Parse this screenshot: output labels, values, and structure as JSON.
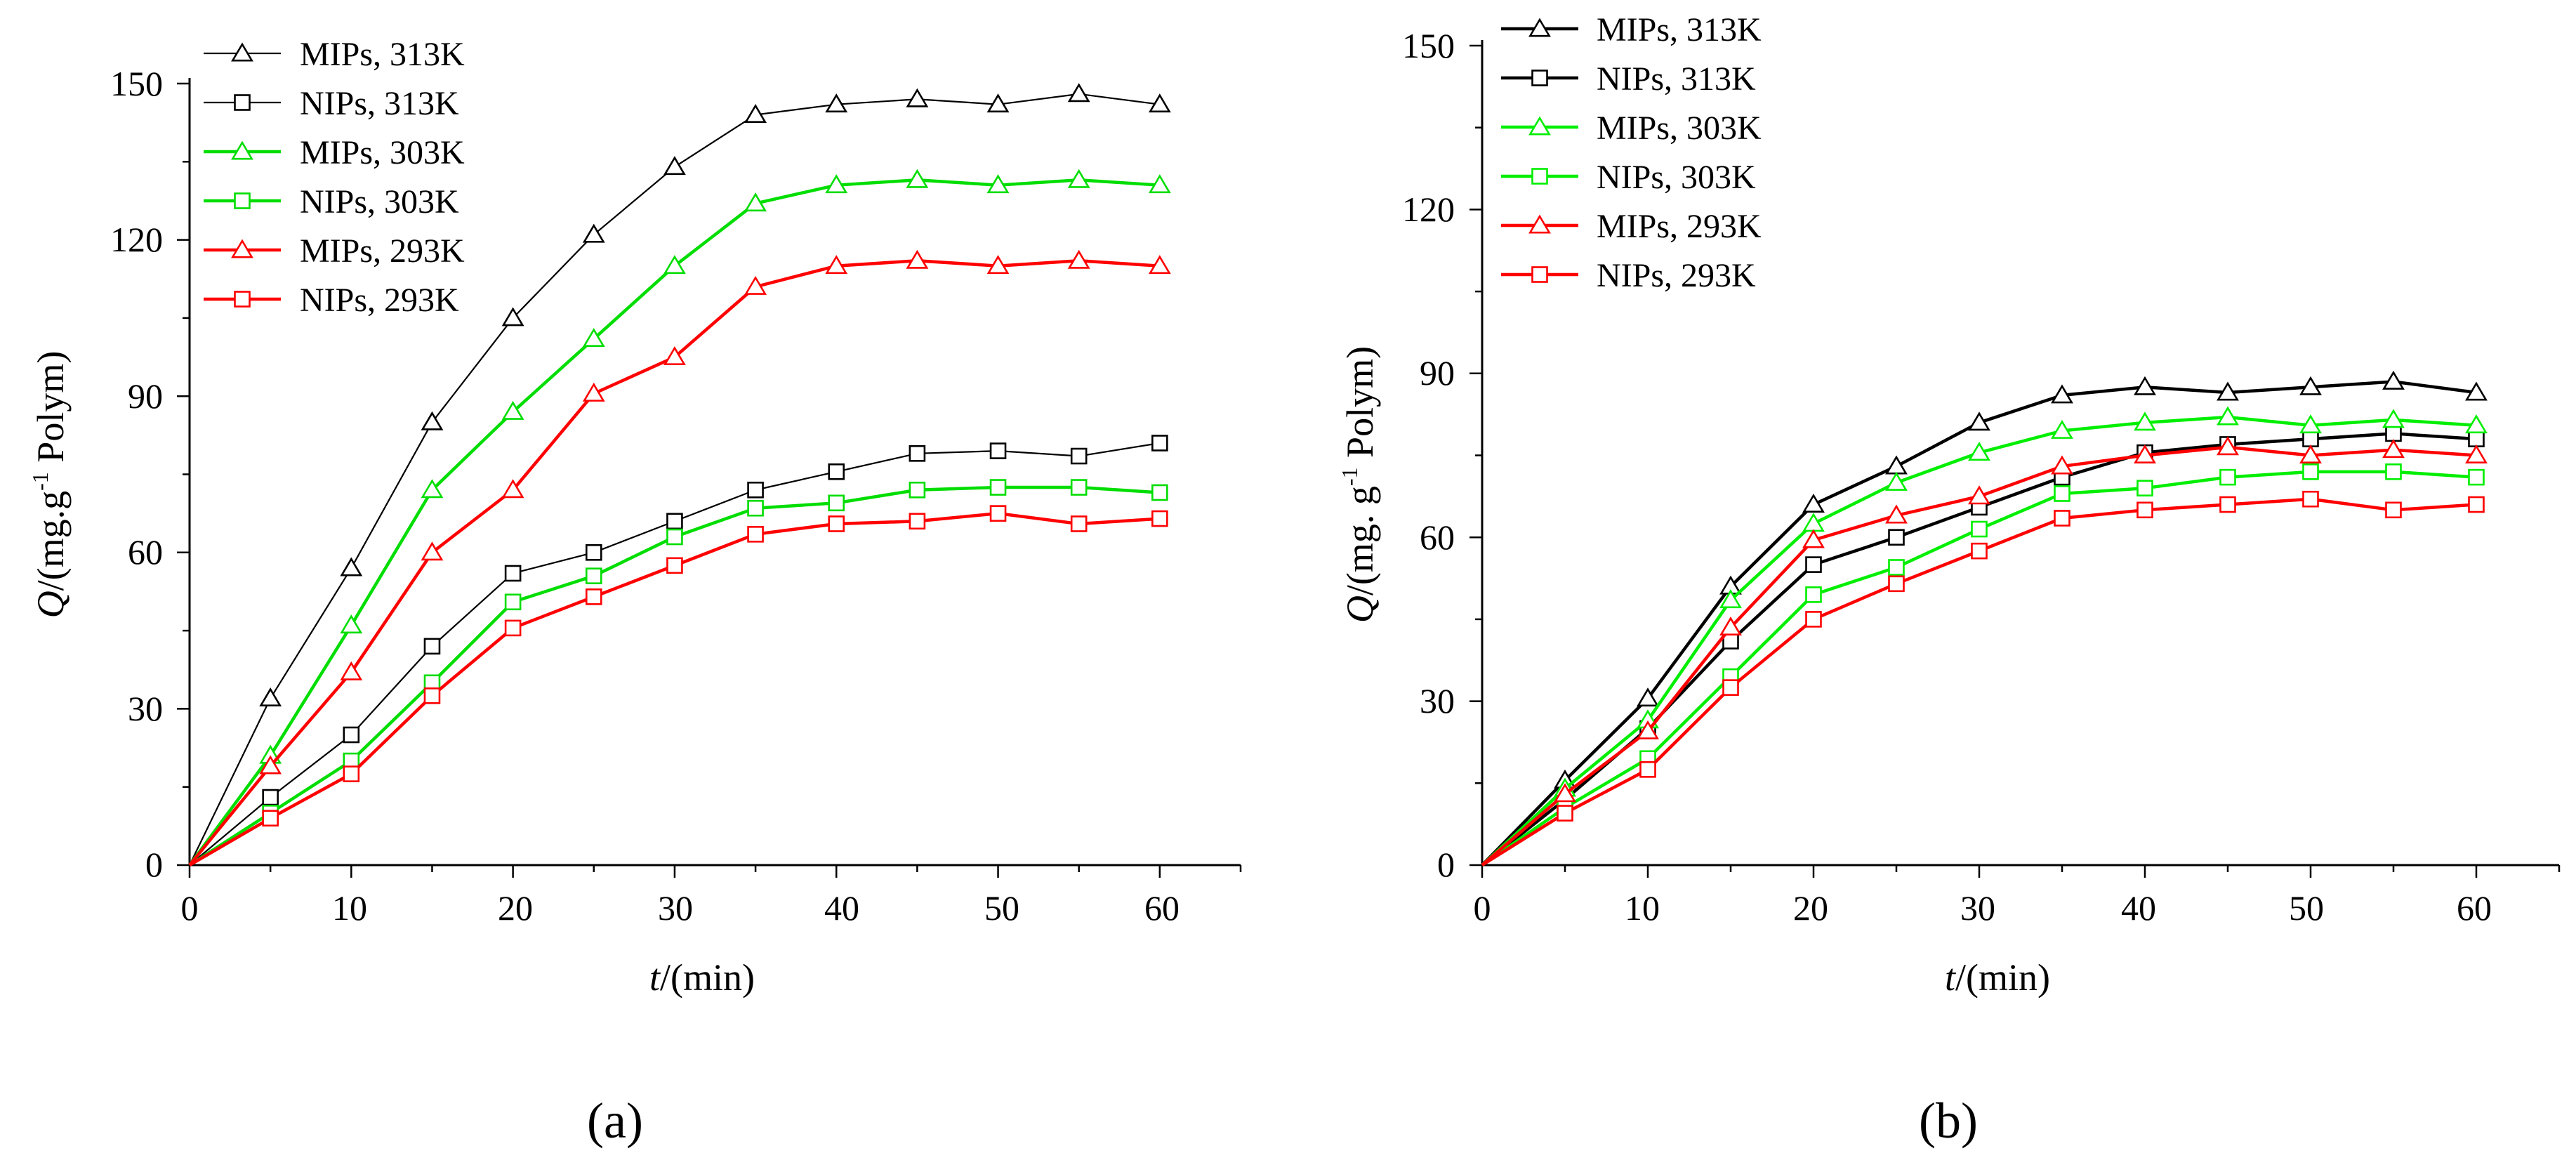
{
  "figure": {
    "panel_labels": [
      "(a)",
      "(b)"
    ]
  },
  "chart_data": [
    {
      "type": "line",
      "panel": "(a)",
      "title": "",
      "xlabel": {
        "italic": "t",
        "rest": "/(min)"
      },
      "ylabel": {
        "italic": "Q",
        "pre": "/(mg.g",
        "sup": "-1",
        "post": " Polym)"
      },
      "xlim": [
        0,
        65
      ],
      "ylim": [
        0,
        150
      ],
      "xticks": [
        0,
        10,
        20,
        30,
        40,
        50,
        60
      ],
      "yticks": [
        0,
        30,
        60,
        90,
        120,
        150
      ],
      "x": [
        0,
        5,
        10,
        15,
        20,
        25,
        30,
        35,
        40,
        45,
        50,
        55,
        60
      ],
      "legend_position": "top-left",
      "series": [
        {
          "name": "MIPs, 313K",
          "color": "#000000",
          "marker": "triangle",
          "line_weight": "thin",
          "values": [
            0,
            32,
            57,
            85,
            105,
            121,
            134,
            144,
            146,
            147,
            146,
            148,
            146
          ]
        },
        {
          "name": "NIPs, 313K",
          "color": "#000000",
          "marker": "square",
          "line_weight": "thin",
          "values": [
            0,
            13,
            25,
            42,
            56,
            60,
            66,
            72,
            75.5,
            79,
            79.5,
            78.5,
            81
          ]
        },
        {
          "name": "MIPs, 303K",
          "color": "#00dd00",
          "marker": "triangle",
          "line_weight": "thick",
          "values": [
            0,
            21,
            46,
            72,
            87,
            101,
            115,
            127,
            130.5,
            131.5,
            130.5,
            131.5,
            130.5
          ]
        },
        {
          "name": "NIPs, 303K",
          "color": "#00dd00",
          "marker": "square",
          "line_weight": "thick",
          "values": [
            0,
            10,
            20,
            35,
            50.5,
            55.5,
            63,
            68.5,
            69.5,
            72,
            72.5,
            72.5,
            71.5
          ]
        },
        {
          "name": "MIPs, 293K",
          "color": "#ff0000",
          "marker": "triangle",
          "line_weight": "thick",
          "values": [
            0,
            19,
            37,
            60,
            72,
            90.5,
            97.5,
            111,
            115,
            116,
            115,
            116,
            115
          ]
        },
        {
          "name": "NIPs, 293K",
          "color": "#ff0000",
          "marker": "square",
          "line_weight": "thick",
          "values": [
            0,
            9,
            17.5,
            32.5,
            45.5,
            51.5,
            57.5,
            63.5,
            65.5,
            66,
            67.5,
            65.5,
            66.5
          ]
        }
      ]
    },
    {
      "type": "line",
      "panel": "(b)",
      "title": "",
      "xlabel": {
        "italic": "t",
        "rest": "/(min)"
      },
      "ylabel": {
        "italic": "Q",
        "pre": "/(mg. g",
        "sup": "-1",
        "post": " Polym)"
      },
      "xlim": [
        0,
        65
      ],
      "ylim": [
        0,
        150
      ],
      "xticks": [
        0,
        10,
        20,
        30,
        40,
        50,
        60
      ],
      "yticks": [
        0,
        30,
        60,
        90,
        120,
        150
      ],
      "x": [
        0,
        5,
        10,
        15,
        20,
        25,
        30,
        35,
        40,
        45,
        50,
        55,
        60
      ],
      "legend_position": "top-left",
      "series": [
        {
          "name": "MIPs, 313K",
          "color": "#000000",
          "marker": "triangle",
          "line_weight": "thick",
          "values": [
            0,
            15.5,
            30.5,
            51,
            66,
            73,
            81,
            86,
            87.5,
            86.5,
            87.5,
            88.5,
            86.5
          ]
        },
        {
          "name": "NIPs, 313K",
          "color": "#000000",
          "marker": "square",
          "line_weight": "thick",
          "values": [
            0,
            12,
            25,
            41,
            55,
            60,
            65.5,
            71,
            75.5,
            77,
            78,
            79,
            78
          ]
        },
        {
          "name": "MIPs, 303K",
          "color": "#00ee00",
          "marker": "triangle",
          "line_weight": "thick",
          "values": [
            0,
            14,
            26.5,
            48.5,
            62.5,
            70,
            75.5,
            79.5,
            81,
            82,
            80.5,
            81.5,
            80.5
          ]
        },
        {
          "name": "NIPs, 303K",
          "color": "#00ee00",
          "marker": "square",
          "line_weight": "thick",
          "values": [
            0,
            10.5,
            19.5,
            34.5,
            49.5,
            54.5,
            61.5,
            68,
            69,
            71,
            72,
            72,
            71
          ]
        },
        {
          "name": "MIPs, 293K",
          "color": "#ff0000",
          "marker": "triangle",
          "line_weight": "thick",
          "values": [
            0,
            13,
            24.5,
            43.5,
            59.5,
            64,
            67.5,
            73,
            75,
            76.5,
            75,
            76,
            75
          ]
        },
        {
          "name": "NIPs, 293K",
          "color": "#ff0000",
          "marker": "square",
          "line_weight": "thick",
          "values": [
            0,
            9.5,
            17.5,
            32.5,
            45,
            51.5,
            57.5,
            63.5,
            65,
            66,
            67,
            65,
            66
          ]
        }
      ]
    }
  ]
}
